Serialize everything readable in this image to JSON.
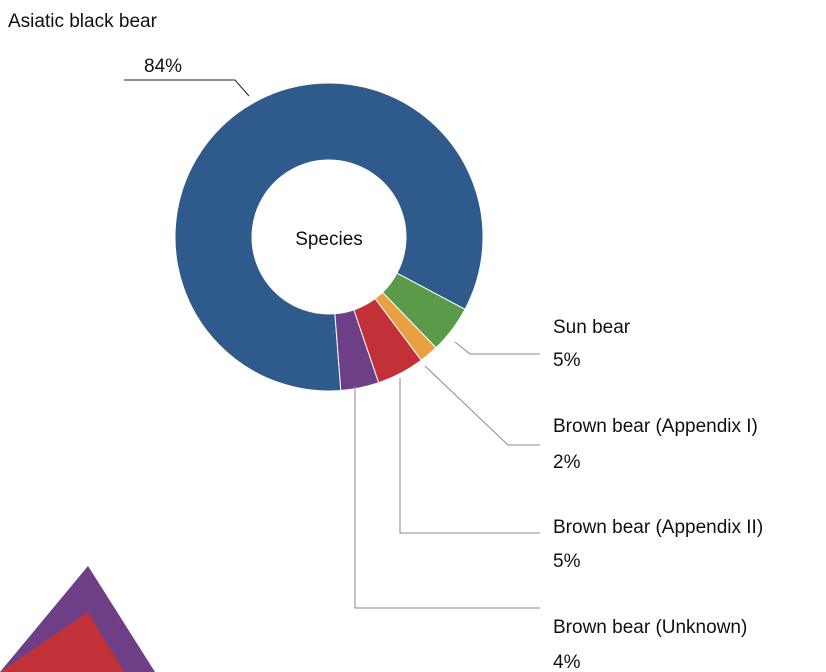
{
  "chart_data": {
    "type": "pie",
    "style": "donut",
    "center_label": "Species",
    "slices": [
      {
        "name": "Asiatic black bear",
        "value": 84,
        "label": "84%",
        "color": "#2e5a8c"
      },
      {
        "name": "Sun bear",
        "value": 5,
        "label": "5%",
        "color": "#5a9a48"
      },
      {
        "name": "Brown bear (Appendix I)",
        "value": 2,
        "label": "2%",
        "color": "#e8a040"
      },
      {
        "name": "Brown bear (Appendix II)",
        "value": 5,
        "label": "5%",
        "color": "#c23038"
      },
      {
        "name": "Brown bear (Unknown)",
        "value": 4,
        "label": "4%",
        "color": "#6e3f86"
      }
    ]
  },
  "decor_colors": {
    "outer": "#6e3f86",
    "inner": "#c23038"
  }
}
